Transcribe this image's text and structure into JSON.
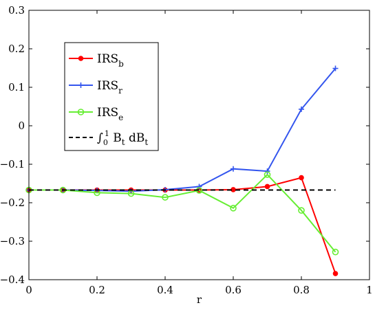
{
  "chart_data": {
    "type": "line",
    "xlabel": "r",
    "ylabel": "",
    "xlim": [
      0,
      1
    ],
    "ylim": [
      -0.4,
      0.3
    ],
    "xticks": [
      0,
      0.2,
      0.4,
      0.6,
      0.8,
      1
    ],
    "xtick_labels": [
      "0",
      "0.2",
      "0.4",
      "0.6",
      "0.8",
      "1"
    ],
    "yticks": [
      -0.4,
      -0.3,
      -0.2,
      -0.1,
      0,
      0.1,
      0.2,
      0.3
    ],
    "ytick_labels": [
      "−0.4",
      "−0.3",
      "−0.2",
      "−0.1",
      "0",
      "0.1",
      "0.2",
      "0.3"
    ],
    "grid": false,
    "legend_position": "upper-left",
    "x": [
      0,
      0.1,
      0.2,
      0.3,
      0.4,
      0.5,
      0.6,
      0.7,
      0.8,
      0.9
    ],
    "series": [
      {
        "name": "IRS",
        "name_sub": "b",
        "color": "#ff0000",
        "marker": "dot",
        "values": [
          -0.167,
          -0.167,
          -0.167,
          -0.167,
          -0.167,
          -0.167,
          -0.166,
          -0.158,
          -0.135,
          -0.384
        ]
      },
      {
        "name": "IRS",
        "name_sub": "r",
        "color": "#3355ee",
        "marker": "plus",
        "values": [
          -0.167,
          -0.167,
          -0.168,
          -0.17,
          -0.166,
          -0.158,
          -0.112,
          -0.118,
          0.043,
          0.149
        ]
      },
      {
        "name": "IRS",
        "name_sub": "e",
        "color": "#66ee33",
        "marker": "circle",
        "values": [
          -0.167,
          -0.167,
          -0.174,
          -0.176,
          -0.186,
          -0.168,
          -0.214,
          -0.127,
          -0.22,
          -0.328
        ]
      },
      {
        "name_parts": [
          "∫",
          "0",
          "1",
          " B",
          "t",
          " dB",
          "t"
        ],
        "color": "#000000",
        "line": "dashed",
        "x_range": [
          0,
          0.9
        ],
        "value": -0.167
      }
    ]
  }
}
